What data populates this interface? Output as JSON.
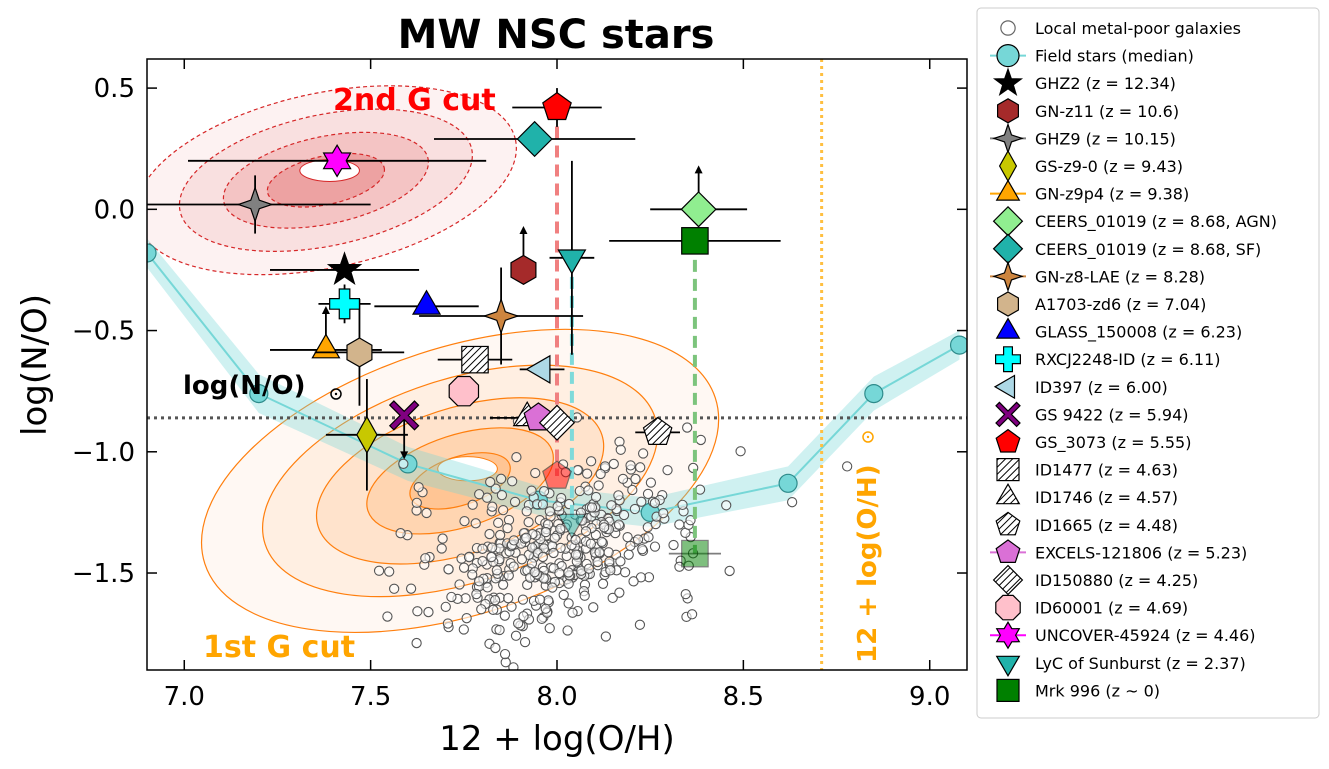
{
  "chart_data": {
    "type": "scatter",
    "title": "MW NSC stars",
    "xlabel": "12 + log(O/H)",
    "ylabel": "log(N/O)",
    "xlim": [
      6.9,
      9.1
    ],
    "ylim": [
      -1.9,
      0.62
    ],
    "xticks": [
      7.0,
      7.5,
      8.0,
      8.5,
      9.0
    ],
    "yticks": [
      -1.5,
      -1.0,
      -0.5,
      0.0,
      0.5
    ],
    "xtick_labels": [
      "7.0",
      "7.5",
      "8.0",
      "8.5",
      "9.0"
    ],
    "ytick_labels": [
      "−1.5",
      "−1.0",
      "−0.5",
      "0.0",
      "0.5"
    ],
    "annotations": {
      "second_gen_cut": "2nd G cut",
      "first_gen_cut": "1st G cut",
      "solar_no": "log(N/O)",
      "solar_oh": "12 + log(O/H)"
    },
    "reference_lines": {
      "solar_log_no": -0.86,
      "solar_oh": 8.71
    },
    "colors": {
      "second_gen_contour": "#d62728",
      "first_gen_contour": "#ff7f0e",
      "field_band": "#76d7d7",
      "solar_oh_line": "#ffbf40",
      "solar_no_line": "#555555"
    },
    "field_median": {
      "x": [
        6.9,
        7.2,
        7.6,
        7.95,
        8.25,
        8.62,
        8.85,
        9.08
      ],
      "y": [
        -0.18,
        -0.76,
        -1.05,
        -1.2,
        -1.25,
        -1.13,
        -0.76,
        -0.56
      ],
      "band": [
        0.06,
        0.08,
        0.07,
        0.06,
        0.06,
        0.07,
        0.07,
        0.06
      ]
    },
    "galaxy_cloud": {
      "center": [
        8.0,
        -1.4
      ],
      "count": 420
    },
    "connectors": [
      {
        "x": [
          8.0,
          8.0
        ],
        "y": [
          0.42,
          -1.1
        ],
        "color": "#f08080"
      },
      {
        "x": [
          8.04,
          8.04
        ],
        "y": [
          -0.2,
          -1.29
        ],
        "color": "#7fdada"
      },
      {
        "x": [
          8.37,
          8.37
        ],
        "y": [
          -0.13,
          -1.42
        ],
        "color": "#7cc47c"
      }
    ],
    "legend_position": "outside-right",
    "legend": [
      {
        "label": "Local metal-poor galaxies",
        "marker": "circle-open",
        "color": "#666666"
      },
      {
        "label": "Field stars (median)",
        "marker": "circle",
        "color": "#76d7d7",
        "line": true
      },
      {
        "label": "GHZ2 (z = 12.34)",
        "marker": "star",
        "color": "#000000"
      },
      {
        "label": "GN-z11 (z = 10.6)",
        "marker": "hexagon",
        "color": "#a52a2a"
      },
      {
        "label": "GHZ9 (z = 10.15)",
        "marker": "star4",
        "color": "#808080",
        "line": true
      },
      {
        "label": "GS-z9-0 (z = 9.43)",
        "marker": "thin_diamond",
        "color": "#c8c800"
      },
      {
        "label": "GN-z9p4 (z = 9.38)",
        "marker": "triangle-right",
        "color": "#ffa500",
        "line": true
      },
      {
        "label": "CEERS_01019 (z = 8.68, AGN)",
        "marker": "diamond",
        "color": "#90ee90"
      },
      {
        "label": "CEERS_01019 (z = 8.68, SF)",
        "marker": "diamond",
        "color": "#20b2aa"
      },
      {
        "label": "GN-z8-LAE (z = 8.28)",
        "marker": "star4",
        "color": "#cd853f",
        "line": true
      },
      {
        "label": "A1703-zd6 (z = 7.04)",
        "marker": "hexagon",
        "color": "#d2b48c"
      },
      {
        "label": "GLASS_150008 (z = 6.23)",
        "marker": "triangle-up",
        "color": "#0000ff"
      },
      {
        "label": "RXCJ2248-ID (z = 6.11)",
        "marker": "plus",
        "color": "#00ffff"
      },
      {
        "label": "ID397 (z = 6.00)",
        "marker": "triangle-left",
        "color": "#add8e6"
      },
      {
        "label": "GS 9422 (z = 5.94)",
        "marker": "x",
        "color": "#800080"
      },
      {
        "label": "GS_3073 (z = 5.55)",
        "marker": "pentagon",
        "color": "#ff0000"
      },
      {
        "label": "ID1477 (z = 4.63)",
        "marker": "square-hatch",
        "color": "#ffffff"
      },
      {
        "label": "ID1746 (z = 4.57)",
        "marker": "triangle-up-hatch",
        "color": "#ffffff"
      },
      {
        "label": "ID1665 (z = 4.48)",
        "marker": "pentagon-hatch",
        "color": "#ffffff"
      },
      {
        "label": "EXCELS-121806 (z = 5.23)",
        "marker": "pentagon",
        "color": "#da70d6",
        "line": true
      },
      {
        "label": "ID150880 (z = 4.25)",
        "marker": "diamond-hatch",
        "color": "#ffffff"
      },
      {
        "label": "ID60001 (z = 4.69)",
        "marker": "octagon",
        "color": "#ffc0cb"
      },
      {
        "label": "UNCOVER-45924 (z = 4.46)",
        "marker": "star6",
        "color": "#ff00ff",
        "line": true
      },
      {
        "label": "LyC of Sunburst (z = 2.37)",
        "marker": "triangle-down",
        "color": "#20b2aa"
      },
      {
        "label": "Mrk 996 (z ~ 0)",
        "marker": "square",
        "color": "#008000"
      }
    ],
    "points": [
      {
        "name": "GHZ2",
        "x": 7.43,
        "y": -0.25,
        "xerr": 0.2,
        "yerr": 0.0,
        "marker": "star",
        "color": "#000000"
      },
      {
        "name": "GN-z11",
        "x": 7.91,
        "y": -0.25,
        "xerr": 0.0,
        "yerr": 0.0,
        "marker": "hexagon",
        "color": "#a52a2a",
        "lower_limit": true
      },
      {
        "name": "GHZ9",
        "x": 7.19,
        "y": 0.02,
        "xerr": 0.31,
        "yerr": 0.12,
        "marker": "star4",
        "color": "#808080"
      },
      {
        "name": "GS-z9-0",
        "x": 7.49,
        "y": -0.93,
        "xerr": 0.11,
        "yerr": 0.23,
        "marker": "thin_diamond",
        "color": "#c8c800"
      },
      {
        "name": "GN-z9p4",
        "x": 7.38,
        "y": -0.58,
        "xerr": 0.15,
        "yerr": 0.0,
        "marker": "triangle-right",
        "color": "#ffa500",
        "lower_limit": true
      },
      {
        "name": "CEERS_01019 AGN",
        "x": 8.38,
        "y": 0.0,
        "xerr": 0.13,
        "yerr": 0.0,
        "marker": "diamond",
        "color": "#90ee90",
        "lower_limit": true
      },
      {
        "name": "CEERS_01019 SF",
        "x": 7.94,
        "y": 0.29,
        "xerr": 0.27,
        "yerr": 0.0,
        "marker": "diamond",
        "color": "#20b2aa"
      },
      {
        "name": "GN-z8-LAE",
        "x": 7.85,
        "y": -0.44,
        "xerr": 0.22,
        "yerr": 0.2,
        "marker": "star4",
        "color": "#cd853f"
      },
      {
        "name": "A1703-zd6",
        "x": 7.47,
        "y": -0.59,
        "xerr": 0.12,
        "yerr": 0.22,
        "marker": "hexagon",
        "color": "#d2b48c"
      },
      {
        "name": "GLASS_150008",
        "x": 7.65,
        "y": -0.4,
        "xerr": 0.14,
        "yerr": 0.0,
        "marker": "triangle-up",
        "color": "#0000ff"
      },
      {
        "name": "RXCJ2248-ID",
        "x": 7.43,
        "y": -0.39,
        "xerr": 0.07,
        "yerr": 0.08,
        "marker": "plus",
        "color": "#00ffff"
      },
      {
        "name": "ID397",
        "x": 7.96,
        "y": -0.66,
        "xerr": 0.06,
        "yerr": 0.0,
        "marker": "triangle-left",
        "color": "#add8e6"
      },
      {
        "name": "GS 9422",
        "x": 7.59,
        "y": -0.85,
        "xerr": 0.0,
        "yerr": 0.0,
        "marker": "x",
        "color": "#800080",
        "upper_limit": true
      },
      {
        "name": "GS_3073",
        "x": 8.0,
        "y": 0.42,
        "xerr": 0.12,
        "yerr": 0.08,
        "marker": "pentagon",
        "color": "#ff0000"
      },
      {
        "name": "ID1477",
        "x": 7.78,
        "y": -0.62,
        "xerr": 0.1,
        "yerr": 0.0,
        "marker": "square-hatch",
        "color": "#ffffff"
      },
      {
        "name": "ID1746",
        "x": 7.92,
        "y": -0.86,
        "xerr": 0.1,
        "yerr": 0.0,
        "marker": "triangle-up-hatch",
        "color": "#ffffff"
      },
      {
        "name": "ID1665",
        "x": 8.27,
        "y": -0.92,
        "xerr": 0.06,
        "yerr": 0.0,
        "marker": "pentagon-hatch",
        "color": "#ffffff"
      },
      {
        "name": "EXCELS-121806",
        "x": 7.95,
        "y": -0.86,
        "xerr": 0.0,
        "yerr": 0.0,
        "marker": "pentagon",
        "color": "#da70d6"
      },
      {
        "name": "ID150880",
        "x": 8.0,
        "y": -0.88,
        "xerr": 0.0,
        "yerr": 0.0,
        "marker": "diamond-hatch",
        "color": "#ffffff"
      },
      {
        "name": "ID60001",
        "x": 7.75,
        "y": -0.75,
        "xerr": 0.0,
        "yerr": 0.0,
        "marker": "octagon",
        "color": "#ffc0cb"
      },
      {
        "name": "UNCOVER-45924",
        "x": 7.41,
        "y": 0.2,
        "xerr": 0.4,
        "yerr": 0.0,
        "marker": "star6",
        "color": "#ff00ff"
      },
      {
        "name": "LyC of Sunburst",
        "x": 8.04,
        "y": -0.2,
        "xerr": 0.06,
        "yerr": 0.4,
        "marker": "triangle-down",
        "color": "#20b2aa"
      },
      {
        "name": "Mrk 996",
        "x": 8.37,
        "y": -0.13,
        "xerr": 0.23,
        "yerr": 0.0,
        "marker": "square",
        "color": "#008000"
      },
      {
        "name": "GS_3073 (1st G)",
        "x": 8.0,
        "y": -1.1,
        "xerr": 0.0,
        "yerr": 0.0,
        "marker": "pentagon",
        "color": "#ff0000",
        "faded": true
      },
      {
        "name": "LyC of Sunburst (1st G)",
        "x": 8.04,
        "y": -1.29,
        "xerr": 0.0,
        "yerr": 0.0,
        "marker": "triangle-down",
        "color": "#20b2aa",
        "faded": true
      },
      {
        "name": "Mrk 996 (1st G)",
        "x": 8.37,
        "y": -1.42,
        "xerr": 0.07,
        "yerr": 0.0,
        "marker": "square",
        "color": "#008000",
        "faded": true
      }
    ]
  }
}
